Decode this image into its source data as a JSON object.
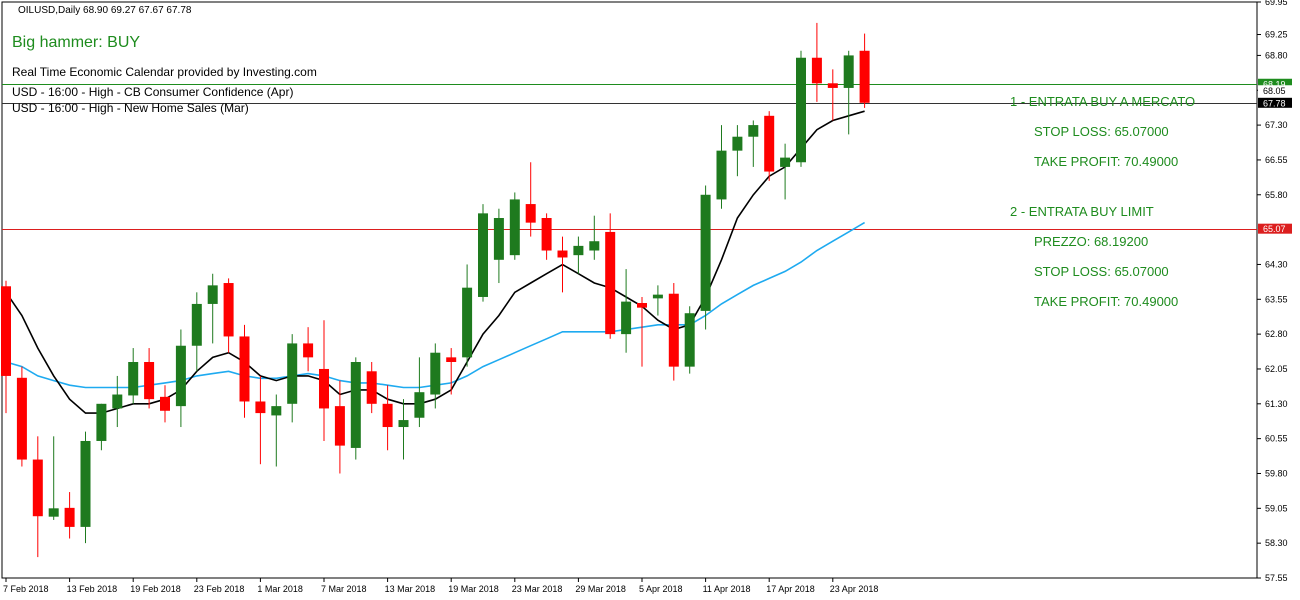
{
  "header": {
    "symbol_line": "OILUSD,Daily  68.90 69.27 67.67 67.78",
    "signal": "Big hammer: BUY",
    "calendar_title": "Real Time Economic Calendar provided by Investing.com",
    "calendar_events": [
      "USD - 16:00 - High - CB Consumer Confidence (Apr)",
      "USD - 16:00 - High - New Home Sales (Mar)"
    ]
  },
  "orders": {
    "entry1": "1 - ENTRATA BUY A MERCATO",
    "entry1_sl": "STOP LOSS: 65.07000",
    "entry1_tp": "TAKE PROFIT: 70.49000",
    "entry2": "2 - ENTRATA BUY LIMIT",
    "entry2_price": "PREZZO: 68.19200",
    "entry2_sl": "STOP LOSS: 65.07000",
    "entry2_tp": "TAKE PROFIT: 70.49000"
  },
  "colors": {
    "bull": "#1e7a1e",
    "bear": "#ff0000",
    "ma_fast": "#000000",
    "ma_slow": "#1eaaf0",
    "line_green": "#1e8c1e",
    "line_red": "#dc1e1e"
  },
  "chart_data": {
    "type": "candlestick",
    "symbol": "OILUSD",
    "timeframe": "Daily",
    "ylim": [
      57.55,
      69.95
    ],
    "y_ticks": [
      "69.95",
      "69.25",
      "68.80",
      "68.05",
      "67.30",
      "66.55",
      "65.80",
      "64.30",
      "63.55",
      "62.80",
      "62.05",
      "61.30",
      "60.55",
      "59.80",
      "59.05",
      "58.30",
      "57.55"
    ],
    "x_ticks": [
      {
        "index": 0,
        "label": "7 Feb 2018"
      },
      {
        "index": 4,
        "label": "13 Feb 2018"
      },
      {
        "index": 8,
        "label": "19 Feb 2018"
      },
      {
        "index": 12,
        "label": "23 Feb 2018"
      },
      {
        "index": 16,
        "label": "1 Mar 2018"
      },
      {
        "index": 20,
        "label": "7 Mar 2018"
      },
      {
        "index": 24,
        "label": "13 Mar 2018"
      },
      {
        "index": 28,
        "label": "19 Mar 2018"
      },
      {
        "index": 32,
        "label": "23 Mar 2018"
      },
      {
        "index": 36,
        "label": "29 Mar 2018"
      },
      {
        "index": 40,
        "label": "5 Apr 2018"
      },
      {
        "index": 44,
        "label": "11 Apr 2018"
      },
      {
        "index": 48,
        "label": "17 Apr 2018"
      },
      {
        "index": 52,
        "label": "23 Apr 2018"
      }
    ],
    "candles": [
      {
        "o": 63.83,
        "h": 63.95,
        "l": 61.1,
        "c": 61.9
      },
      {
        "o": 61.86,
        "h": 62.1,
        "l": 59.95,
        "c": 60.1
      },
      {
        "o": 60.1,
        "h": 60.6,
        "l": 58.0,
        "c": 58.88
      },
      {
        "o": 58.87,
        "h": 60.6,
        "l": 58.8,
        "c": 59.05
      },
      {
        "o": 59.06,
        "h": 59.4,
        "l": 58.4,
        "c": 58.65
      },
      {
        "o": 58.65,
        "h": 60.7,
        "l": 58.3,
        "c": 60.5
      },
      {
        "o": 60.5,
        "h": 61.3,
        "l": 60.3,
        "c": 61.3
      },
      {
        "o": 61.2,
        "h": 61.9,
        "l": 60.8,
        "c": 61.5
      },
      {
        "o": 61.48,
        "h": 62.5,
        "l": 61.3,
        "c": 62.2
      },
      {
        "o": 62.2,
        "h": 62.5,
        "l": 61.2,
        "c": 61.4
      },
      {
        "o": 61.45,
        "h": 61.7,
        "l": 60.9,
        "c": 61.15
      },
      {
        "o": 61.25,
        "h": 62.9,
        "l": 60.8,
        "c": 62.55
      },
      {
        "o": 62.55,
        "h": 63.7,
        "l": 62.0,
        "c": 63.45
      },
      {
        "o": 63.45,
        "h": 64.1,
        "l": 62.6,
        "c": 63.85
      },
      {
        "o": 63.9,
        "h": 64.0,
        "l": 62.4,
        "c": 62.75
      },
      {
        "o": 62.75,
        "h": 63.0,
        "l": 61.0,
        "c": 61.35
      },
      {
        "o": 61.35,
        "h": 61.9,
        "l": 60.0,
        "c": 61.1
      },
      {
        "o": 61.05,
        "h": 61.5,
        "l": 59.95,
        "c": 61.25
      },
      {
        "o": 61.3,
        "h": 62.8,
        "l": 60.9,
        "c": 62.6
      },
      {
        "o": 62.6,
        "h": 62.95,
        "l": 62.0,
        "c": 62.3
      },
      {
        "o": 62.05,
        "h": 63.1,
        "l": 60.5,
        "c": 61.2
      },
      {
        "o": 61.25,
        "h": 61.8,
        "l": 59.8,
        "c": 60.4
      },
      {
        "o": 60.35,
        "h": 62.3,
        "l": 60.1,
        "c": 62.2
      },
      {
        "o": 62.0,
        "h": 62.2,
        "l": 61.1,
        "c": 61.3
      },
      {
        "o": 61.3,
        "h": 61.7,
        "l": 60.3,
        "c": 60.8
      },
      {
        "o": 60.8,
        "h": 61.4,
        "l": 60.1,
        "c": 60.95
      },
      {
        "o": 61.0,
        "h": 62.3,
        "l": 60.8,
        "c": 61.55
      },
      {
        "o": 61.5,
        "h": 62.6,
        "l": 61.2,
        "c": 62.4
      },
      {
        "o": 62.3,
        "h": 62.5,
        "l": 61.5,
        "c": 62.2
      },
      {
        "o": 62.3,
        "h": 64.3,
        "l": 62.1,
        "c": 63.8
      },
      {
        "o": 63.6,
        "h": 65.6,
        "l": 63.5,
        "c": 65.4
      },
      {
        "o": 64.4,
        "h": 65.5,
        "l": 63.9,
        "c": 65.3
      },
      {
        "o": 64.5,
        "h": 65.85,
        "l": 64.4,
        "c": 65.7
      },
      {
        "o": 65.6,
        "h": 66.5,
        "l": 64.9,
        "c": 65.2
      },
      {
        "o": 65.3,
        "h": 65.4,
        "l": 64.4,
        "c": 64.6
      },
      {
        "o": 64.6,
        "h": 64.9,
        "l": 63.7,
        "c": 64.45
      },
      {
        "o": 64.5,
        "h": 64.9,
        "l": 64.1,
        "c": 64.7
      },
      {
        "o": 64.6,
        "h": 65.35,
        "l": 64.4,
        "c": 64.8
      },
      {
        "o": 65.0,
        "h": 65.4,
        "l": 62.7,
        "c": 62.8
      },
      {
        "o": 62.8,
        "h": 64.2,
        "l": 62.4,
        "c": 63.5
      },
      {
        "o": 63.47,
        "h": 63.6,
        "l": 62.1,
        "c": 63.37
      },
      {
        "o": 63.57,
        "h": 63.85,
        "l": 63.2,
        "c": 63.65
      },
      {
        "o": 63.67,
        "h": 63.9,
        "l": 61.8,
        "c": 62.1
      },
      {
        "o": 62.1,
        "h": 63.4,
        "l": 61.95,
        "c": 63.25
      },
      {
        "o": 63.3,
        "h": 66.0,
        "l": 62.9,
        "c": 65.8
      },
      {
        "o": 65.7,
        "h": 67.3,
        "l": 65.5,
        "c": 66.75
      },
      {
        "o": 66.75,
        "h": 67.3,
        "l": 66.2,
        "c": 67.05
      },
      {
        "o": 67.05,
        "h": 67.4,
        "l": 66.4,
        "c": 67.3
      },
      {
        "o": 67.5,
        "h": 67.6,
        "l": 66.1,
        "c": 66.3
      },
      {
        "o": 66.4,
        "h": 66.9,
        "l": 65.7,
        "c": 66.6
      },
      {
        "o": 66.5,
        "h": 68.9,
        "l": 66.4,
        "c": 68.75
      },
      {
        "o": 68.75,
        "h": 69.5,
        "l": 67.8,
        "c": 68.2
      },
      {
        "o": 68.2,
        "h": 68.5,
        "l": 67.4,
        "c": 68.1
      },
      {
        "o": 68.1,
        "h": 68.9,
        "l": 67.1,
        "c": 68.8
      },
      {
        "o": 68.9,
        "h": 69.27,
        "l": 67.67,
        "c": 67.78
      }
    ],
    "ma_fast": [
      63.7,
      63.2,
      62.5,
      61.9,
      61.4,
      61.1,
      61.1,
      61.2,
      61.3,
      61.3,
      61.4,
      61.6,
      62.0,
      62.3,
      62.4,
      62.2,
      61.9,
      61.8,
      61.9,
      61.9,
      61.8,
      61.5,
      61.6,
      61.6,
      61.4,
      61.3,
      61.3,
      61.4,
      61.6,
      62.2,
      62.8,
      63.2,
      63.7,
      63.9,
      64.1,
      64.3,
      64.1,
      63.9,
      63.8,
      63.6,
      63.4,
      63.1,
      62.9,
      63.0,
      63.6,
      64.4,
      65.3,
      65.8,
      66.2,
      66.4,
      66.8,
      67.2,
      67.4,
      67.5,
      67.6
    ],
    "ma_slow": [
      62.2,
      62.1,
      61.9,
      61.8,
      61.7,
      61.65,
      61.65,
      61.65,
      61.65,
      61.7,
      61.75,
      61.8,
      61.9,
      61.95,
      62.0,
      61.9,
      61.85,
      61.85,
      61.9,
      61.95,
      61.9,
      61.8,
      61.75,
      61.75,
      61.7,
      61.65,
      61.65,
      61.7,
      61.75,
      61.9,
      62.1,
      62.25,
      62.4,
      62.55,
      62.7,
      62.85,
      62.85,
      62.85,
      62.85,
      62.9,
      62.95,
      63.0,
      63.0,
      63.0,
      63.2,
      63.45,
      63.65,
      63.85,
      64.0,
      64.15,
      64.35,
      64.6,
      64.8,
      65.0,
      65.2
    ],
    "levels": [
      {
        "price": 68.19,
        "label": "68.19",
        "color": "#1e8c1e",
        "tag_bg": "#1e8c1e",
        "tag_fg": "#ffffff"
      },
      {
        "price": 68.05,
        "label": "68.05",
        "color": "#cccccc",
        "tag_bg": "#ffffff",
        "tag_fg": "#000000",
        "line": false
      },
      {
        "price": 67.78,
        "label": "67.78",
        "color": "#333333",
        "tag_bg": "#000000",
        "tag_fg": "#ffffff"
      },
      {
        "price": 65.07,
        "label": "65.07",
        "color": "#dc1e1e",
        "tag_bg": "#dc1e1e",
        "tag_fg": "#ffffff"
      }
    ]
  }
}
